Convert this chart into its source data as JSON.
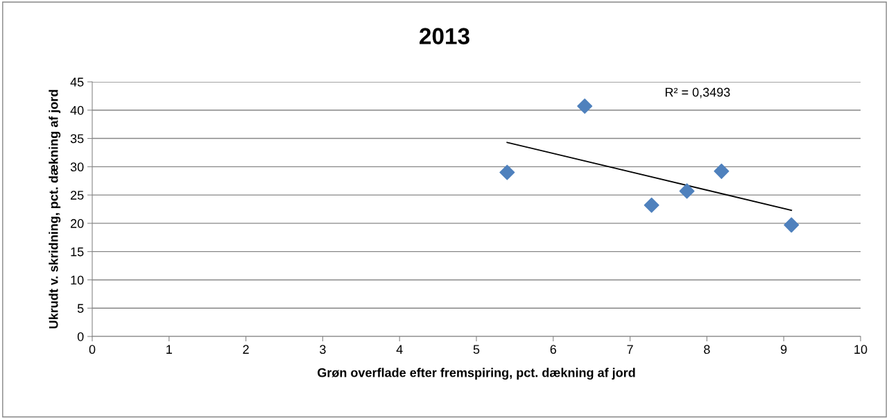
{
  "chart_data": {
    "type": "scatter",
    "title": "2013",
    "xlabel": "Grøn overflade efter fremspiring, pct. dækning af jord",
    "ylabel": "Ukrudt v. skridning, pct. dækning af jord",
    "x": [
      5.4,
      6.41,
      7.28,
      7.74,
      8.19,
      9.1
    ],
    "series": [
      {
        "color": "#4f81bd",
        "marker": "diamond",
        "values": [
          29.0,
          40.7,
          23.2,
          25.7,
          29.2,
          19.7
        ]
      },
      {
        "type": "line",
        "color": "#000000",
        "marker": "none",
        "line_style": "solid",
        "x": [
          5.4,
          9.1
        ],
        "values": [
          34.3,
          22.3
        ]
      }
    ],
    "annotations": [
      "R² = 0,3493"
    ],
    "xlim": [
      0,
      10
    ],
    "xticks": [
      0,
      1,
      2,
      3,
      4,
      5,
      6,
      7,
      8,
      9,
      10
    ],
    "ylim": [
      0,
      45
    ],
    "yticks": [
      0,
      5,
      10,
      15,
      20,
      25,
      30,
      35,
      40,
      45
    ],
    "grid": "y",
    "legend": false
  }
}
